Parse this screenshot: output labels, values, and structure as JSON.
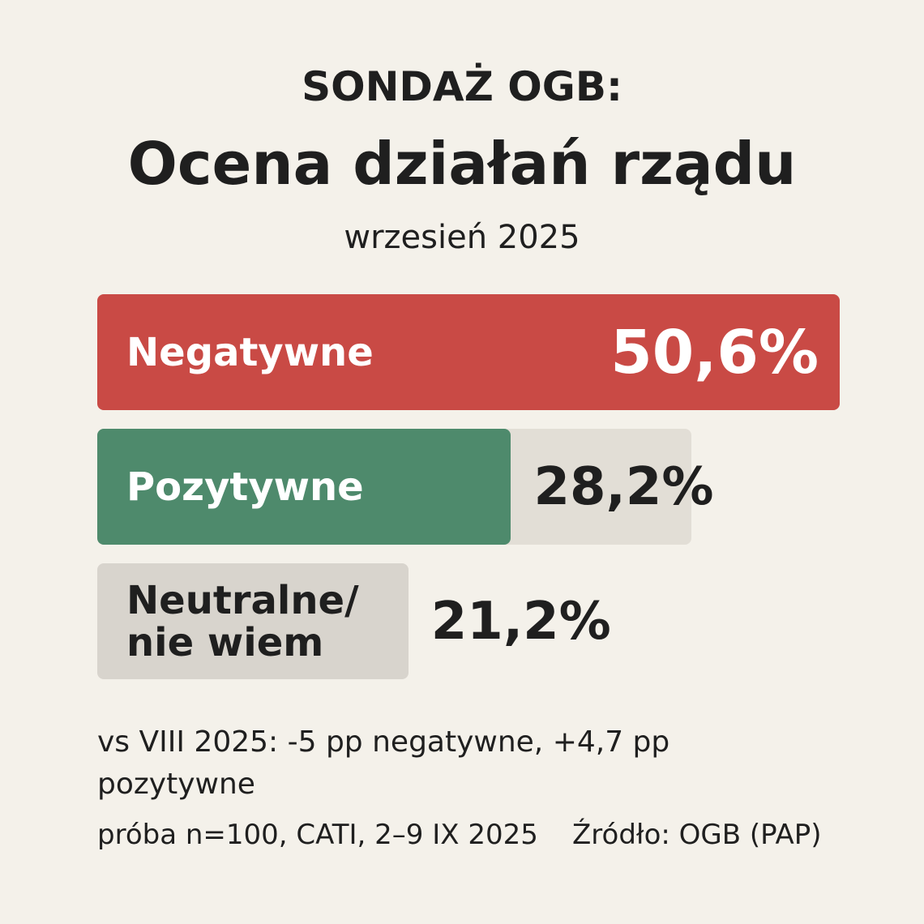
{
  "chart_data": {
    "type": "hbar",
    "title": "SONDAŻ OGB:",
    "subtitle": "Ocena działań rządu",
    "date": "wrzesień 2025",
    "categories": [
      "Negatywne",
      "Pozytywne",
      "Neutralne/\nnie wiem"
    ],
    "values": [
      50.6,
      28.2,
      21.2
    ],
    "value_labels": [
      "50,6%",
      "28,2%",
      "21,2%"
    ],
    "colors": [
      "#c94a45",
      "#4e8a6c",
      "#d8d4cd"
    ],
    "text_colors": [
      "#ffffff",
      "#ffffff",
      "#1f1f1f"
    ],
    "note": "vs VIII 2025: -5 pp negatywne, +4,7 pp pozytywne",
    "sample": "próba n=100, CATI, 2–9 IX 2025",
    "source": "Źródło: OGB (PAP)"
  }
}
